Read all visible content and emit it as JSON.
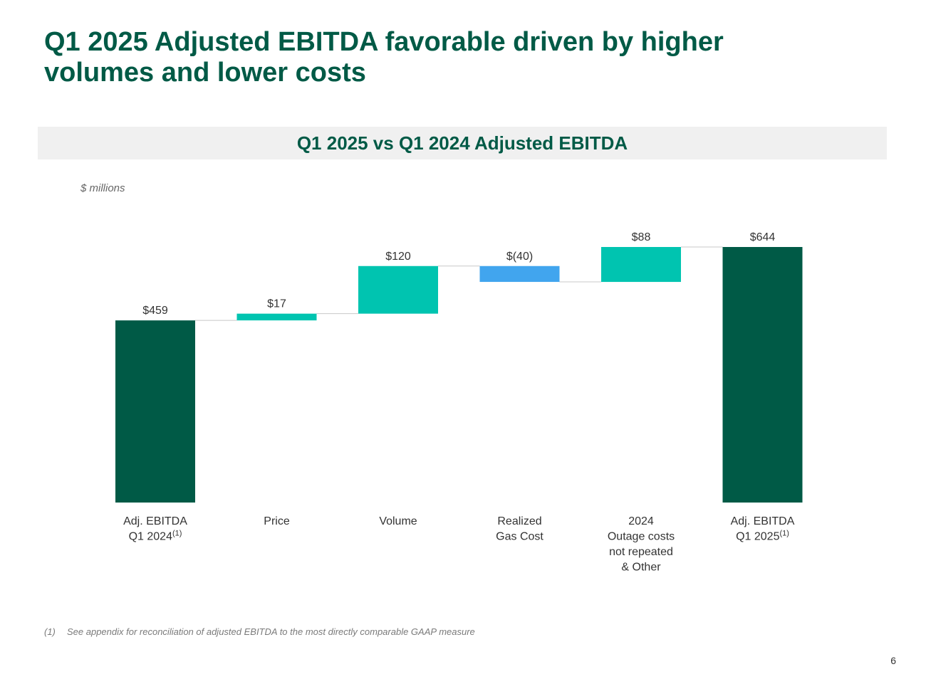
{
  "slide": {
    "title": "Q1 2025 Adjusted EBITDA favorable driven by higher volumes and lower costs",
    "page_number": "6"
  },
  "footnote": {
    "marker": "(1)",
    "text": "See appendix for reconciliation of adjusted EBITDA to the most directly comparable GAAP measure"
  },
  "chart_data": {
    "type": "waterfall",
    "title": "Q1 2025 vs Q1 2024 Adjusted EBITDA",
    "units_label": "$ millions",
    "ylim": [
      0,
      700
    ],
    "grid": false,
    "legend": "none",
    "bars": [
      {
        "category_lines": [
          "Adj. EBITDA",
          "Q1 2024"
        ],
        "superscript": "(1)",
        "value": 459,
        "kind": "total",
        "label": "$459"
      },
      {
        "category_lines": [
          "Price"
        ],
        "superscript": "",
        "value": 17,
        "kind": "increase",
        "label": "$17"
      },
      {
        "category_lines": [
          "Volume"
        ],
        "superscript": "",
        "value": 120,
        "kind": "increase",
        "label": "$120"
      },
      {
        "category_lines": [
          "Realized",
          "Gas Cost"
        ],
        "superscript": "",
        "value": -40,
        "kind": "decrease",
        "label": "$(40)"
      },
      {
        "category_lines": [
          "2024",
          "Outage costs",
          "not repeated",
          "& Other"
        ],
        "superscript": "",
        "value": 88,
        "kind": "increase",
        "label": "$88"
      },
      {
        "category_lines": [
          "Adj. EBITDA",
          "Q1 2025"
        ],
        "superscript": "(1)",
        "value": 644,
        "kind": "total",
        "label": "$644"
      }
    ],
    "colors": {
      "total": "#005a46",
      "increase": "#00c4b0",
      "decrease": "#41a5ee",
      "connector": "#c8c8c8",
      "text": "#333333"
    }
  }
}
